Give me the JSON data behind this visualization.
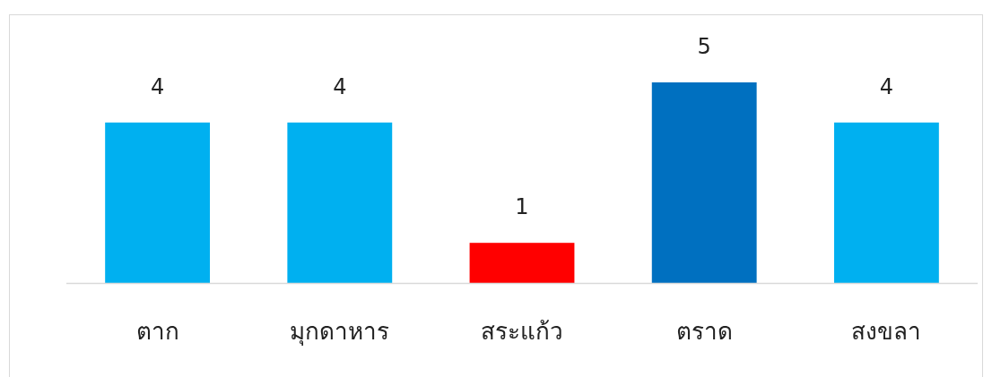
{
  "chart_data": {
    "type": "bar",
    "categories": [
      "ตาก",
      "มุกดาหาร",
      "สระแก้ว",
      "ตราด",
      "สงขลา"
    ],
    "values": [
      4,
      4,
      1,
      5,
      4
    ],
    "colors": [
      "#00b0f0",
      "#00b0f0",
      "#ff0000",
      "#0070c0",
      "#00b0f0"
    ],
    "data_labels": true
  }
}
